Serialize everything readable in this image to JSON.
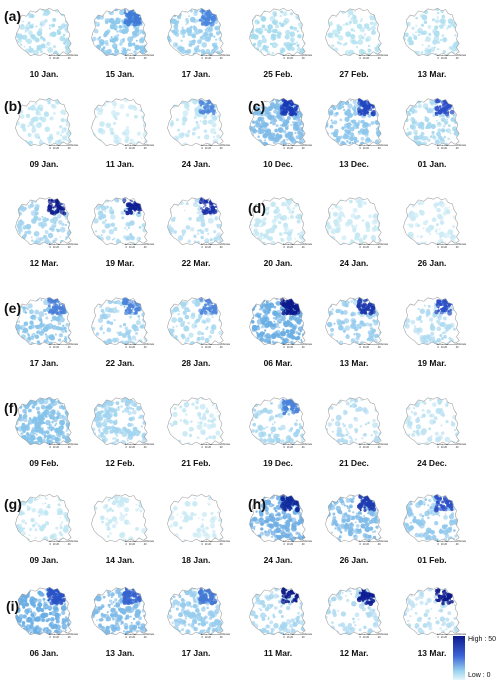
{
  "panels": [
    {
      "letter": "(a)",
      "maps": [
        {
          "date": "10 Jan.",
          "base": "#a9dcef",
          "hot": null,
          "intensity": 0.3
        },
        {
          "date": "15 Jan.",
          "base": "#8cc8ec",
          "hot": "#3f7ad8",
          "intensity": 0.55
        },
        {
          "date": "17 Jan.",
          "base": "#94cdee",
          "hot": "#4a86de",
          "intensity": 0.45
        },
        {
          "date": "25 Feb.",
          "base": "#a5dbee",
          "hot": null,
          "intensity": 0.35
        },
        {
          "date": "27 Feb.",
          "base": "#b6e3f1",
          "hot": null,
          "intensity": 0.25
        },
        {
          "date": "13 Mar.",
          "base": "#b0dff0",
          "hot": null,
          "intensity": 0.3
        }
      ]
    },
    {
      "letter": "(b)",
      "maps": [
        {
          "date": "09 Jan.",
          "base": "#b8e3f2",
          "hot": null,
          "intensity": 0.25
        },
        {
          "date": "11 Jan.",
          "base": "#c4e8f4",
          "hot": null,
          "intensity": 0.15
        },
        {
          "date": "24 Jan.",
          "base": "#bde4f3",
          "hot": "#4d86db",
          "intensity": 0.2
        }
      ]
    },
    {
      "letter": "(c)",
      "maps": [
        {
          "date": "10 Dec.",
          "base": "#7fbbe8",
          "hot": "#1a3ab8",
          "intensity": 0.75
        },
        {
          "date": "13 Dec.",
          "base": "#8cc6ec",
          "hot": "#2246c0",
          "intensity": 0.55
        },
        {
          "date": "01 Jan.",
          "base": "#a6d8ef",
          "hot": "#2c4fc8",
          "intensity": 0.4
        }
      ]
    },
    {
      "letter": "",
      "maps": [
        {
          "date": "12 Mar.",
          "base": "#9fd2ee",
          "hot": "#0c1a8c",
          "intensity": 0.3
        },
        {
          "date": "19 Mar.",
          "base": "#a7d7ef",
          "hot": "#0e1f95",
          "intensity": 0.25
        },
        {
          "date": "22 Mar.",
          "base": "#b6def2",
          "hot": "#1a2fa8",
          "intensity": 0.18
        }
      ]
    },
    {
      "letter": "(d)",
      "maps": [
        {
          "date": "20 Jan.",
          "base": "#c0e6f3",
          "hot": null,
          "intensity": 0.3
        },
        {
          "date": "24 Jan.",
          "base": "#c7e9f4",
          "hot": null,
          "intensity": 0.22
        },
        {
          "date": "26 Jan.",
          "base": "#cbeaf5",
          "hot": null,
          "intensity": 0.18
        }
      ]
    },
    {
      "letter": "(e)",
      "maps": [
        {
          "date": "17 Jan.",
          "base": "#86c3ea",
          "hot": "#4a7fd8",
          "intensity": 0.45
        },
        {
          "date": "22 Jan.",
          "base": "#9fd2ee",
          "hot": "#4b84da",
          "intensity": 0.3
        },
        {
          "date": "28 Jan.",
          "base": "#a8d8ef",
          "hot": "#4f86dc",
          "intensity": 0.3
        }
      ]
    },
    {
      "letter": "",
      "maps": [
        {
          "date": "06 Mar.",
          "base": "#6aaee4",
          "hot": "#0c1a8c",
          "intensity": 0.8
        },
        {
          "date": "13 Mar.",
          "base": "#98cdee",
          "hot": "#1d38ad",
          "intensity": 0.35
        },
        {
          "date": "19 Mar.",
          "base": "#aedaf0",
          "hot": "#2d4fc6",
          "intensity": 0.25
        }
      ]
    },
    {
      "letter": "(f)",
      "maps": [
        {
          "date": "09 Feb.",
          "base": "#84c2ea",
          "hot": null,
          "intensity": 0.85
        },
        {
          "date": "12 Feb.",
          "base": "#a2d4ef",
          "hot": null,
          "intensity": 0.55
        },
        {
          "date": "21 Feb.",
          "base": "#c2e6f3",
          "hot": null,
          "intensity": 0.15
        }
      ]
    },
    {
      "letter": "",
      "maps": [
        {
          "date": "19 Dec.",
          "base": "#a4d6ef",
          "hot": "#4a82da",
          "intensity": 0.3
        },
        {
          "date": "21 Dec.",
          "base": "#b4dcf1",
          "hot": null,
          "intensity": 0.2
        },
        {
          "date": "24 Dec.",
          "base": "#bce2f2",
          "hot": null,
          "intensity": 0.2
        }
      ]
    },
    {
      "letter": "(g)",
      "maps": [
        {
          "date": "09 Jan.",
          "base": "#bfe5f3",
          "hot": null,
          "intensity": 0.25
        },
        {
          "date": "14 Jan.",
          "base": "#c8e9f4",
          "hot": null,
          "intensity": 0.12
        },
        {
          "date": "18 Jan.",
          "base": "#cbeaf5",
          "hot": null,
          "intensity": 0.12
        }
      ]
    },
    {
      "letter": "(h)",
      "maps": [
        {
          "date": "24 Jan.",
          "base": "#6faee4",
          "hot": "#0f2a9c",
          "intensity": 0.7
        },
        {
          "date": "26 Jan.",
          "base": "#7fbbe8",
          "hot": "#1e3ab0",
          "intensity": 0.55
        },
        {
          "date": "01 Feb.",
          "base": "#90c8ec",
          "hot": "#2d4fc6",
          "intensity": 0.4
        }
      ]
    },
    {
      "letter": "(i)",
      "maps": [
        {
          "date": "06 Jan.",
          "base": "#6aaee4",
          "hot": "#2a52c6",
          "intensity": 0.8
        },
        {
          "date": "13 Jan.",
          "base": "#7fbbe8",
          "hot": "#3663ce",
          "intensity": 0.65
        },
        {
          "date": "17 Jan.",
          "base": "#98cdee",
          "hot": "#4478d4",
          "intensity": 0.5
        },
        {
          "date": "11 Mar.",
          "base": "#a6d6ef",
          "hot": "#0c1a8c",
          "intensity": 0.3
        },
        {
          "date": "12 Mar.",
          "base": "#aed9f0",
          "hot": "#0e1f95",
          "intensity": 0.28
        },
        {
          "date": "13 Mar.",
          "base": "#b8def1",
          "hot": "#0c1a8c",
          "intensity": 0.22
        }
      ]
    }
  ],
  "scale_bar": {
    "ticks": [
      "0",
      "10",
      "20",
      "40"
    ],
    "unit": "Kilometers"
  },
  "legend": {
    "high": "High : 50",
    "low": "Low : 0"
  }
}
